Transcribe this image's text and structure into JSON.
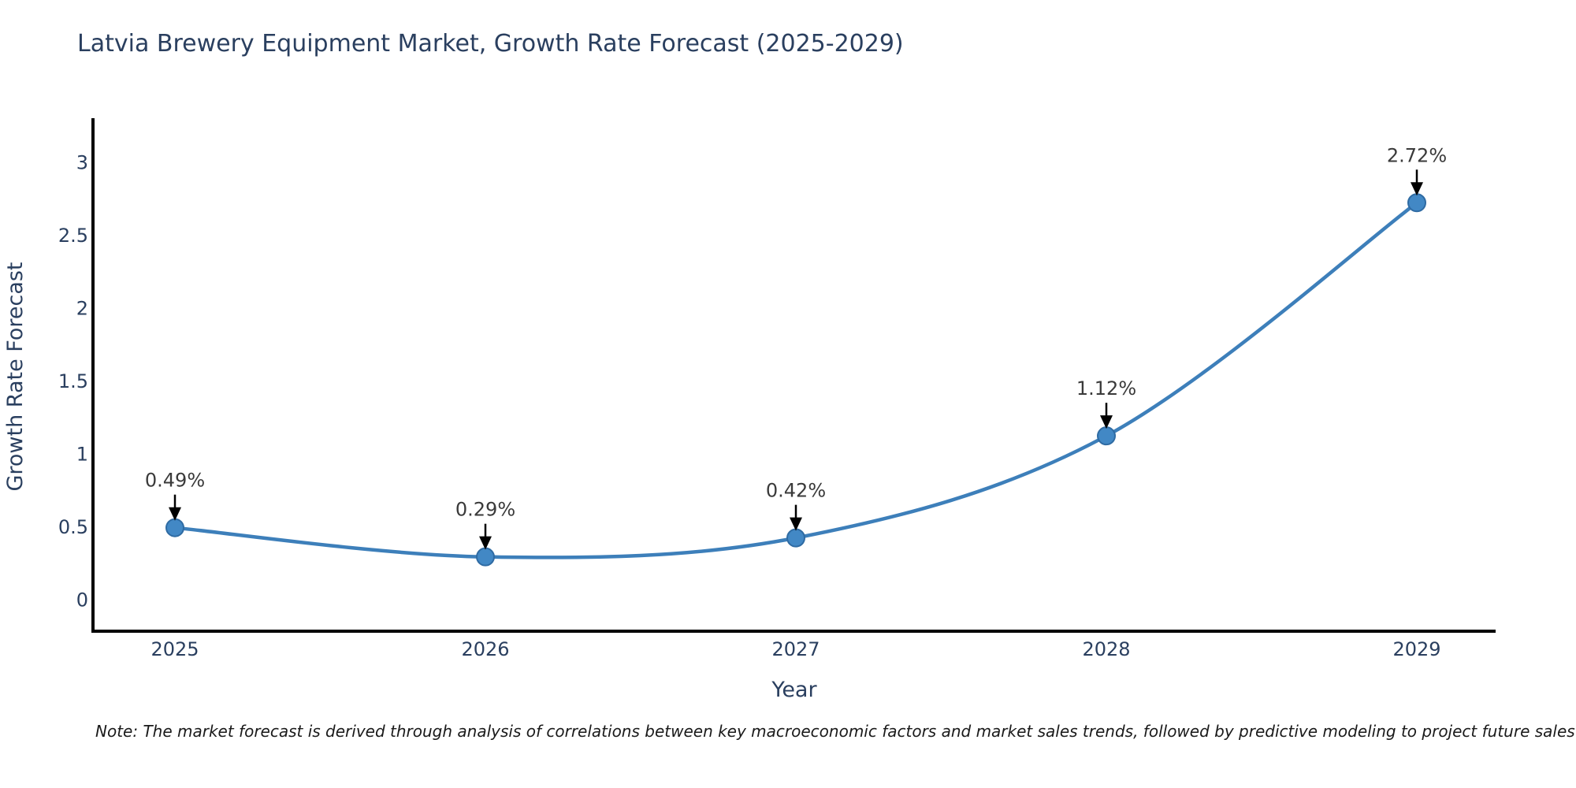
{
  "title": "Latvia Brewery Equipment Market, Growth Rate Forecast (2025-2029)",
  "note": "Note: The market forecast is derived through analysis of correlations between key macroeconomic factors and market sales trends, followed by predictive modeling to project future sales",
  "chart_data": {
    "type": "line",
    "title": "Latvia Brewery Equipment Market, Growth Rate Forecast (2025-2029)",
    "xlabel": "Year",
    "ylabel": "Growth Rate Forecast",
    "categories": [
      "2025",
      "2026",
      "2027",
      "2028",
      "2029"
    ],
    "values": [
      0.49,
      0.29,
      0.42,
      1.12,
      2.72
    ],
    "point_labels": [
      "0.49%",
      "0.29%",
      "0.42%",
      "1.12%",
      "2.72%"
    ],
    "yticks": [
      0,
      0.5,
      1,
      1.5,
      2,
      2.5,
      3
    ],
    "ylim": [
      -0.22,
      3.3
    ],
    "line_shape": "spline",
    "grid": false,
    "legend": "none",
    "markers": true,
    "annotation_arrows": "down",
    "colors": {
      "line": "#3d7fba",
      "marker": "#4288c5",
      "marker_edge": "#2f6ba3",
      "axis": "#000000",
      "axis_text": "#2a3f5f",
      "annotation_text": "#3a3a3a",
      "arrow": "#000000",
      "background": "#ffffff"
    }
  }
}
